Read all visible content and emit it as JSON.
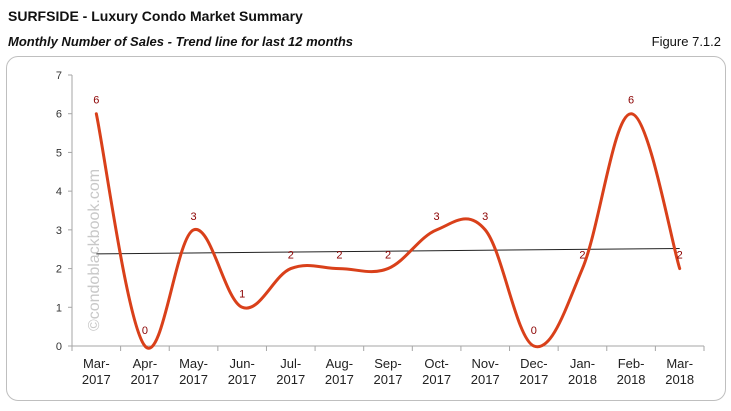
{
  "header": {
    "title": "SURFSIDE - Luxury Condo Market Summary",
    "subtitle": "Monthly Number of Sales - Trend line for last 12 months",
    "figure_label": "Figure 7.1.2"
  },
  "watermark": "©condoblackbook.com",
  "colors": {
    "series": "#d9401a",
    "trend": "#222222",
    "data_label": "#8b0000",
    "axis": "#a6a6a6"
  },
  "chart_data": {
    "type": "line",
    "title": "",
    "xlabel": "",
    "ylabel": "",
    "categories": [
      "Mar-2017",
      "Apr-2017",
      "May-2017",
      "Jun-2017",
      "Jul-2017",
      "Aug-2017",
      "Sep-2017",
      "Oct-2017",
      "Nov-2017",
      "Dec-2017",
      "Jan-2018",
      "Feb-2018",
      "Mar-2018"
    ],
    "category_lines": [
      [
        "Mar-",
        "2017"
      ],
      [
        "Apr-",
        "2017"
      ],
      [
        "May-",
        "2017"
      ],
      [
        "Jun-",
        "2017"
      ],
      [
        "Jul-",
        "2017"
      ],
      [
        "Aug-",
        "2017"
      ],
      [
        "Sep-",
        "2017"
      ],
      [
        "Oct-",
        "2017"
      ],
      [
        "Nov-",
        "2017"
      ],
      [
        "Dec-",
        "2017"
      ],
      [
        "Jan-",
        "2018"
      ],
      [
        "Feb-",
        "2018"
      ],
      [
        "Mar-",
        "2018"
      ]
    ],
    "series": [
      {
        "values": [
          6,
          0,
          3,
          1,
          2,
          2,
          2,
          3,
          3,
          0,
          2,
          6,
          2
        ]
      }
    ],
    "trendline": {
      "start": 2.38,
      "end": 2.52
    },
    "yticks": [
      0,
      1,
      2,
      3,
      4,
      5,
      6,
      7
    ],
    "ylim": [
      0,
      7
    ],
    "grid": false,
    "legend": "none",
    "smooth": true
  }
}
